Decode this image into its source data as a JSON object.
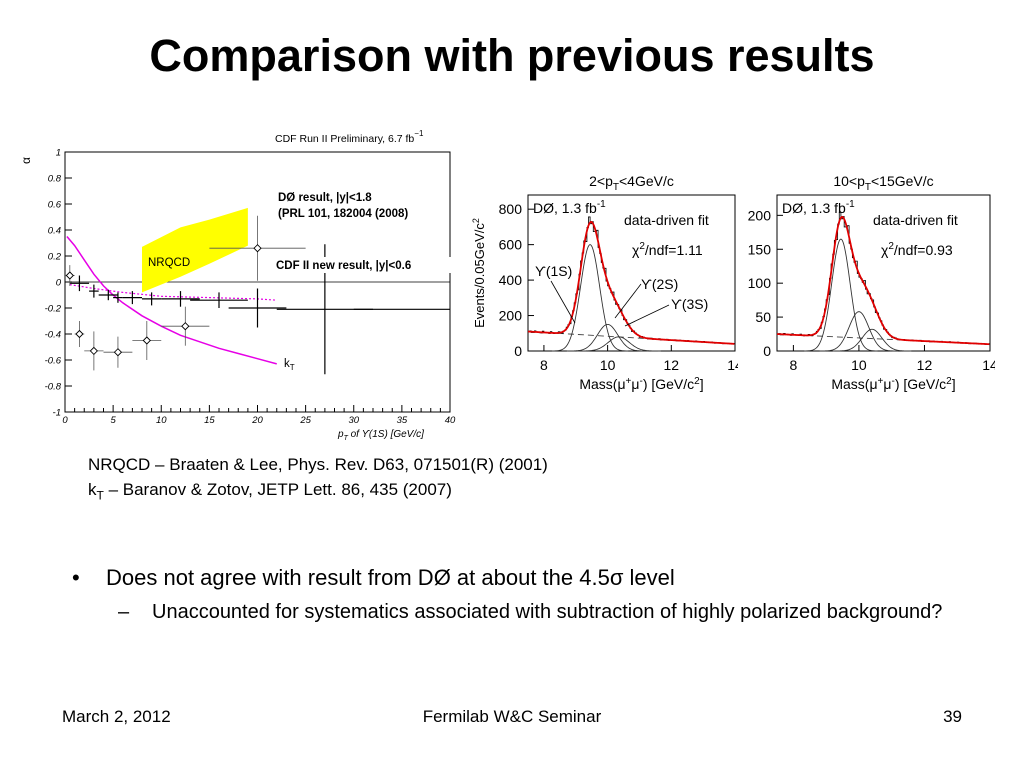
{
  "slide": {
    "title": "Comparison with previous results",
    "references": {
      "nrqcd": "NRQCD – Braaten & Lee, Phys. Rev. D63, 071501(R) (2001)",
      "kt_prefix": "k",
      "kt_sub": "T",
      "kt_rest": " – Baranov & Zotov, JETP Lett. 86, 435 (2007)"
    },
    "bullets": [
      {
        "marker": "•",
        "text": "Does not agree with result from DØ at about the 4.5σ level",
        "subitems": [
          {
            "marker": "–",
            "text": "Unaccounted for systematics associated with subtraction of highly polarized background?"
          }
        ]
      }
    ],
    "footer": {
      "date": "March 2, 2012",
      "event": "Fermilab W&C Seminar",
      "page": "39"
    }
  },
  "chart_data": [
    {
      "type": "scatter",
      "title": "CDF Run II Preliminary, 6.7 fb",
      "title_superscript": "−1",
      "ylabel": "α",
      "xlabel_parts": [
        "p",
        "T",
        " of ϒ(1S) [GeV/c]"
      ],
      "xlim": [
        0,
        40
      ],
      "ylim": [
        -1,
        1
      ],
      "xticks": [
        0,
        5,
        10,
        15,
        20,
        25,
        30,
        35,
        40
      ],
      "yticks": [
        -1,
        -0.8,
        -0.6,
        -0.4,
        -0.2,
        0,
        0.2,
        0.4,
        0.6,
        0.8,
        1
      ],
      "annotations": {
        "d0_line1": "DØ result, |y|<1.8",
        "d0_line2": "(PRL 101, 182004 (2008)",
        "cdf": "CDF II new result, |y|<0.6",
        "nrqcd": "NRQCD",
        "kt": "k",
        "kt_sub": "T"
      },
      "series": [
        {
          "name": "CDF II new result, |y|<0.6",
          "marker": "cross",
          "points": [
            {
              "x": 1.5,
              "y": -0.01,
              "xerr": 1,
              "yerr": 0.06
            },
            {
              "x": 3.0,
              "y": -0.07,
              "xerr": 0.5,
              "yerr": 0.05
            },
            {
              "x": 4.5,
              "y": -0.1,
              "xerr": 1,
              "yerr": 0.04
            },
            {
              "x": 5.5,
              "y": -0.12,
              "xerr": 0.5,
              "yerr": 0.04
            },
            {
              "x": 7.0,
              "y": -0.12,
              "xerr": 1,
              "yerr": 0.05
            },
            {
              "x": 9.0,
              "y": -0.13,
              "xerr": 1,
              "yerr": 0.05
            },
            {
              "x": 12.0,
              "y": -0.13,
              "xerr": 2,
              "yerr": 0.06
            },
            {
              "x": 16.0,
              "y": -0.14,
              "xerr": 3,
              "yerr": 0.06
            },
            {
              "x": 20.0,
              "y": -0.2,
              "xerr": 3,
              "yerr": 0.15
            },
            {
              "x": 27.0,
              "y": -0.21,
              "xerr": 5,
              "yerr": 0.5
            },
            {
              "x": 35.0,
              "y": -0.21,
              "xerr": 5,
              "yerr": 0
            }
          ]
        },
        {
          "name": "DØ result, |y|<1.8",
          "marker": "open-diamond",
          "points": [
            {
              "x": 0.5,
              "y": 0.05,
              "xerr": 0.5,
              "yerr": 0.08
            },
            {
              "x": 1.5,
              "y": -0.4,
              "xerr": 0.5,
              "yerr": 0.1
            },
            {
              "x": 3.0,
              "y": -0.53,
              "xerr": 1,
              "yerr": 0.15
            },
            {
              "x": 5.5,
              "y": -0.54,
              "xerr": 1.5,
              "yerr": 0.12
            },
            {
              "x": 8.5,
              "y": -0.45,
              "xerr": 1.5,
              "yerr": 0.15
            },
            {
              "x": 12.5,
              "y": -0.34,
              "xerr": 2.5,
              "yerr": 0.15
            },
            {
              "x": 20.0,
              "y": 0.26,
              "xerr": 5,
              "yerr": 0.25
            }
          ]
        }
      ],
      "curves": {
        "kt": [
          [
            0.2,
            0.35
          ],
          [
            1,
            0.28
          ],
          [
            2,
            0.17
          ],
          [
            3,
            0.06
          ],
          [
            4,
            -0.03
          ],
          [
            5,
            -0.1
          ],
          [
            6,
            -0.16
          ],
          [
            8,
            -0.26
          ],
          [
            10,
            -0.34
          ],
          [
            12,
            -0.41
          ],
          [
            14,
            -0.46
          ],
          [
            16,
            -0.51
          ],
          [
            18,
            -0.55
          ],
          [
            20,
            -0.59
          ],
          [
            22,
            -0.63
          ]
        ],
        "nrqcd_dotted": [
          [
            0.5,
            -0.02
          ],
          [
            3,
            -0.05
          ],
          [
            6,
            -0.08
          ],
          [
            10,
            -0.11
          ],
          [
            15,
            -0.12
          ],
          [
            20,
            -0.13
          ],
          [
            22,
            -0.14
          ]
        ],
        "nrqcd_band": [
          [
            8,
            0.27
          ],
          [
            12,
            0.42
          ],
          [
            15,
            0.48
          ],
          [
            19,
            0.57
          ],
          [
            19,
            0.28
          ],
          [
            15,
            0.14
          ],
          [
            12,
            0.04
          ],
          [
            8,
            -0.08
          ]
        ]
      },
      "colors": {
        "kt": "#e600e6",
        "nrqcd": "#ffff00",
        "dotted": "#e600e6"
      }
    },
    {
      "type": "bar",
      "title": "2<p",
      "title_sub": "T",
      "title_rest": "<4GeV/c",
      "ylabel": "Events/0.05GeV/c",
      "ylabel_sup": "2",
      "xlabel": "Mass(μ",
      "xlabel_full": "Mass(μ+μ-) [GeV/c2]",
      "xlim": [
        7.5,
        14
      ],
      "ylim": [
        0,
        880
      ],
      "xticks": [
        8,
        10,
        12,
        14
      ],
      "yticks": [
        0,
        200,
        400,
        600,
        800
      ],
      "labels": {
        "experiment": "DØ, 1.3 fb",
        "experiment_sup": "-1",
        "fit": "data-driven fit",
        "chi2": "χ",
        "chi2_rest": "/ndf=1.11",
        "peak1": "ϒ(1S)",
        "peak2": "ϒ(2S)",
        "peak3": "ϒ(3S)"
      },
      "peaks": [
        {
          "mean": 9.45,
          "sigma": 0.3,
          "amp": 600
        },
        {
          "mean": 10.0,
          "sigma": 0.32,
          "amp": 150
        },
        {
          "mean": 10.35,
          "sigma": 0.33,
          "amp": 80
        }
      ],
      "background": {
        "start": 110,
        "end": 40
      }
    },
    {
      "type": "bar",
      "title": "10<p",
      "title_sub": "T",
      "title_rest": "<15GeV/c",
      "xlim": [
        7.5,
        14
      ],
      "ylim": [
        0,
        230
      ],
      "xticks": [
        8,
        10,
        12,
        14
      ],
      "yticks": [
        0,
        50,
        100,
        150,
        200
      ],
      "labels": {
        "experiment": "DØ, 1.3 fb",
        "experiment_sup": "-1",
        "fit": "data-driven fit",
        "chi2": "χ",
        "chi2_rest": "/ndf=0.93"
      },
      "peaks": [
        {
          "mean": 9.45,
          "sigma": 0.28,
          "amp": 165
        },
        {
          "mean": 10.0,
          "sigma": 0.3,
          "amp": 58
        },
        {
          "mean": 10.4,
          "sigma": 0.3,
          "amp": 32
        }
      ],
      "background": {
        "start": 25,
        "end": 10
      }
    }
  ]
}
